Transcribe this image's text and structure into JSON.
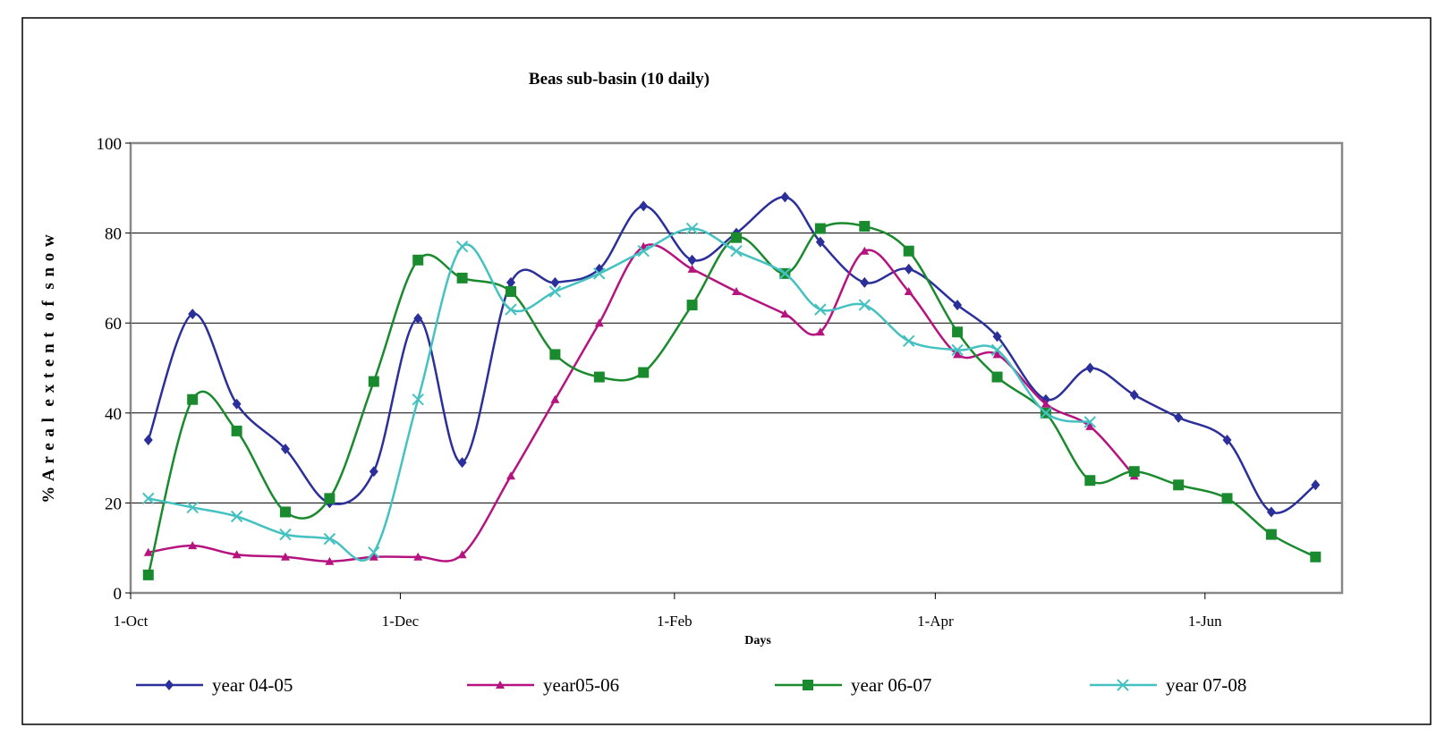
{
  "chart_data": {
    "type": "line",
    "title": "Beas sub-basin (10 daily)",
    "xlabel": "Days",
    "ylabel": "% A r e a l  e x t e n t  o f  s n o w",
    "ylim": [
      0,
      100
    ],
    "xlim_days_from_1_oct": [
      0,
      274
    ],
    "yticks": [
      0,
      20,
      40,
      60,
      80,
      100
    ],
    "xticks": [
      {
        "day": 0,
        "label": "1-Oct"
      },
      {
        "day": 61,
        "label": "1-Dec"
      },
      {
        "day": 123,
        "label": "1-Feb"
      },
      {
        "day": 182,
        "label": "1-Apr"
      },
      {
        "day": 243,
        "label": "1-Jun"
      }
    ],
    "grid": "horizontal",
    "legend_placement": "bottom",
    "series": [
      {
        "name": "year 04-05",
        "color": "#2b2f9a",
        "marker": "diamond",
        "x": [
          4,
          14,
          24,
          35,
          45,
          55,
          65,
          75,
          86,
          96,
          106,
          116,
          127,
          137,
          148,
          156,
          166,
          176,
          187,
          196,
          207,
          217,
          227,
          237,
          248,
          258,
          268
        ],
        "y": [
          34,
          62,
          42,
          32,
          20,
          27,
          61,
          29,
          69,
          69,
          72,
          86,
          74,
          80,
          88,
          78,
          69,
          72,
          64,
          57,
          43,
          50,
          44,
          39,
          34,
          18,
          24
        ]
      },
      {
        "name": "year05-06",
        "color": "#b5137f",
        "marker": "triangle",
        "x": [
          4,
          14,
          24,
          35,
          45,
          55,
          65,
          75,
          86,
          96,
          106,
          116,
          127,
          137,
          148,
          156,
          166,
          176,
          187,
          196,
          207,
          217,
          227
        ],
        "y": [
          9,
          10.5,
          8.5,
          8,
          7,
          8,
          8,
          8.5,
          26,
          43,
          60,
          77,
          72,
          67,
          62,
          58,
          76,
          67,
          53,
          53,
          42,
          37,
          26
        ]
      },
      {
        "name": "year 06-07",
        "color": "#1a8a2e",
        "marker": "square",
        "x": [
          4,
          14,
          24,
          35,
          45,
          55,
          65,
          75,
          86,
          96,
          106,
          116,
          127,
          137,
          148,
          156,
          166,
          176,
          187,
          196,
          207,
          217,
          227,
          237,
          248,
          258,
          268
        ],
        "y": [
          4,
          43,
          36,
          18,
          21,
          47,
          74,
          70,
          67,
          53,
          48,
          49,
          64,
          79,
          71,
          81,
          81.5,
          76,
          58,
          48,
          40,
          25,
          27,
          24,
          21,
          13,
          8
        ]
      },
      {
        "name": "year 07-08",
        "color": "#45c1c1",
        "marker": "x",
        "x": [
          4,
          14,
          24,
          35,
          45,
          55,
          65,
          75,
          86,
          96,
          106,
          116,
          127,
          137,
          148,
          156,
          166,
          176,
          187,
          196,
          207,
          217
        ],
        "y": [
          21,
          19,
          17,
          13,
          12,
          9,
          43,
          77,
          63,
          67,
          71,
          76,
          81,
          76,
          71,
          63,
          64,
          56,
          54,
          54,
          40,
          38
        ]
      }
    ]
  }
}
